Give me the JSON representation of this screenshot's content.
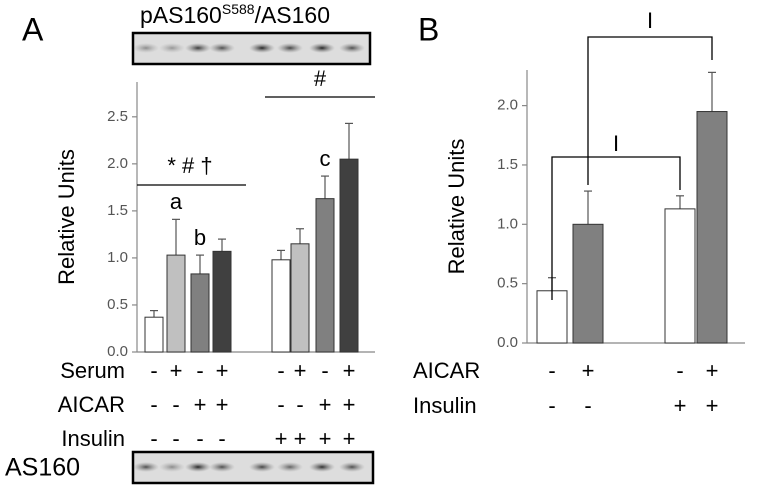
{
  "chart_data": [
    {
      "type": "bar",
      "panel_label": "A",
      "y_label": "Relative Units",
      "categories": [
        null,
        null,
        null,
        null,
        null,
        null,
        null,
        null
      ],
      "values": [
        0.37,
        1.03,
        0.83,
        1.07,
        0.98,
        1.15,
        1.63,
        2.05
      ],
      "errors": [
        0.07,
        0.38,
        0.2,
        0.13,
        0.1,
        0.16,
        0.24,
        0.38
      ],
      "colors": [
        "#ffffff",
        "#c0c0c0",
        "#808080",
        "#404040",
        "#ffffff",
        "#c0c0c0",
        "#808080",
        "#404040"
      ],
      "ylim": [
        0,
        2.87
      ],
      "yticks": [
        {
          "value": 0,
          "label": "0.0"
        },
        0.5,
        {
          "value": 1,
          "label": "1.0"
        },
        1.5,
        {
          "value": 2,
          "label": "2.0"
        },
        2.5
      ],
      "blot_top": {
        "label": "pAS160",
        "superscript": "S588",
        "suffix": "/AS160"
      },
      "blot_bottom": "AS160",
      "treatments": [
        {
          "name": "Serum",
          "values": [
            "-",
            "+",
            "-",
            "+",
            "-",
            "+",
            "-",
            "+"
          ]
        },
        {
          "name": "AICAR",
          "values": [
            "-",
            "-",
            "+",
            "+",
            "-",
            "-",
            "+",
            "+"
          ]
        },
        {
          "name": "Insulin",
          "values": [
            "-",
            "-",
            "-",
            "-",
            "+",
            "+",
            "+",
            "+"
          ]
        }
      ],
      "bar_labels": [
        null,
        "a",
        "b",
        null,
        null,
        null,
        "c",
        null
      ],
      "annotations": [
        {
          "text": "* # †"
        },
        {
          "text": "#"
        }
      ]
    },
    {
      "type": "bar",
      "panel_label": "B",
      "y_label": "Relative Units",
      "categories": [
        null,
        null,
        null,
        null
      ],
      "values": [
        0.44,
        1.0,
        1.13,
        1.95
      ],
      "errors": [
        0.11,
        0.28,
        0.11,
        0.33
      ],
      "colors": [
        "#ffffff",
        "#808080",
        "#ffffff",
        "#808080"
      ],
      "ylim": [
        0,
        2.3
      ],
      "yticks": [
        {
          "value": 0,
          "label": "0.0"
        },
        0.5,
        {
          "value": 1,
          "label": "1.0"
        },
        1.5,
        {
          "value": 2,
          "label": "2.0"
        }
      ],
      "treatments": [
        {
          "name": "AICAR",
          "values": [
            "-",
            "+",
            "-",
            "+"
          ]
        },
        {
          "name": "Insulin",
          "values": [
            "-",
            "-",
            "+",
            "+"
          ]
        }
      ],
      "annotations": [
        {
          "text": "I"
        },
        {
          "text": "I"
        }
      ]
    }
  ]
}
